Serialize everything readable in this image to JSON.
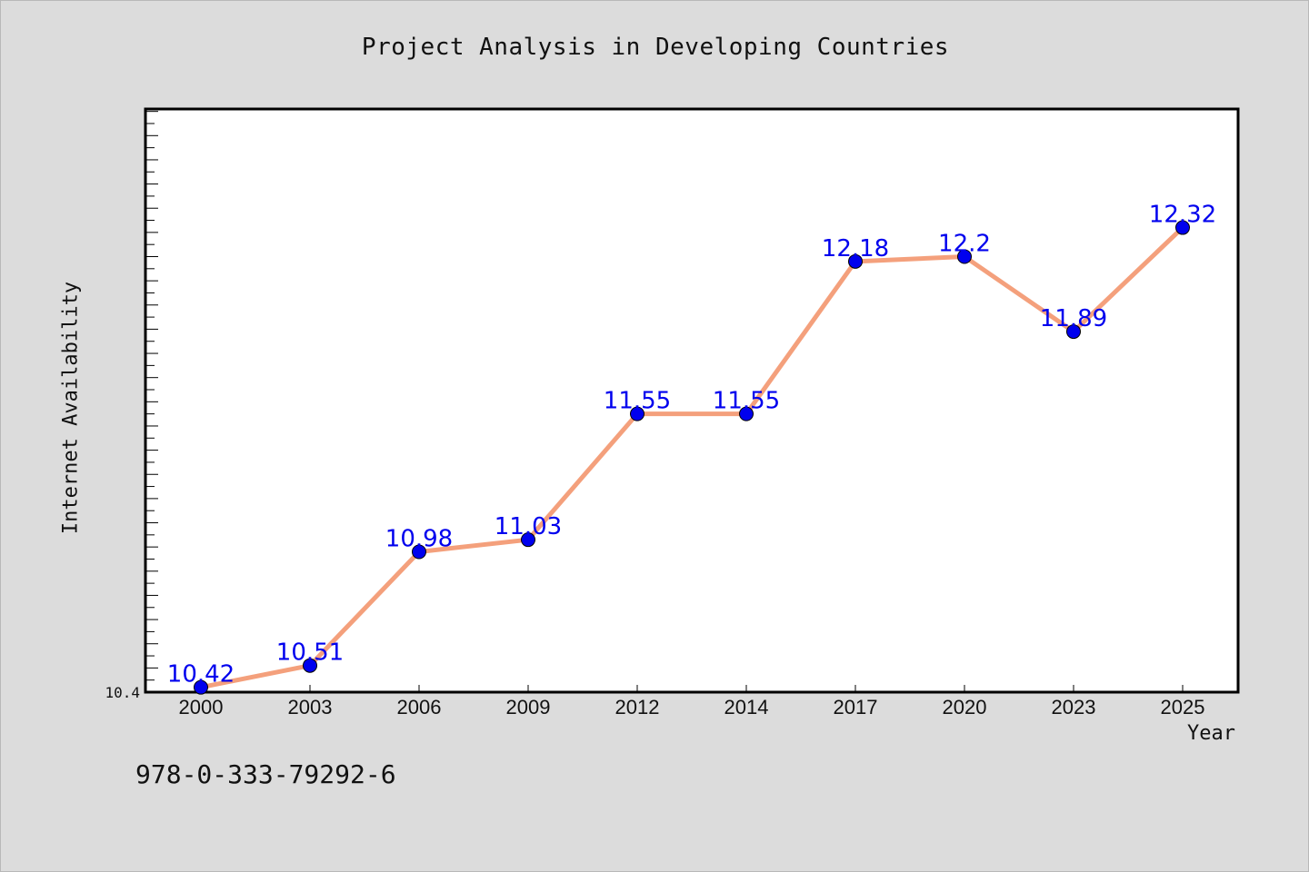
{
  "chart_data": {
    "type": "line",
    "title": "Project Analysis in Developing Countries",
    "xlabel": "Year",
    "ylabel": "Internet Availability",
    "categories": [
      "2000",
      "2003",
      "2006",
      "2009",
      "2012",
      "2014",
      "2017",
      "2020",
      "2023",
      "2025"
    ],
    "series": [
      {
        "values": [
          10.42,
          10.51,
          10.98,
          11.03,
          11.55,
          11.55,
          12.18,
          12.2,
          11.89,
          12.32
        ]
      }
    ],
    "data_labels": [
      "10.42",
      "10.51",
      "10.98",
      "11.03",
      "11.55",
      "11.55",
      "12.18",
      "12.2",
      "11.89",
      "12.32"
    ],
    "ylim": [
      10.4,
      12.81
    ],
    "y_tick_labels": [
      "10.4"
    ],
    "line_color": "#f4a07c",
    "marker_color": "#0000ee",
    "label_color": "#0000ee",
    "grid": false
  },
  "footnote": "978-0-333-79292-6"
}
